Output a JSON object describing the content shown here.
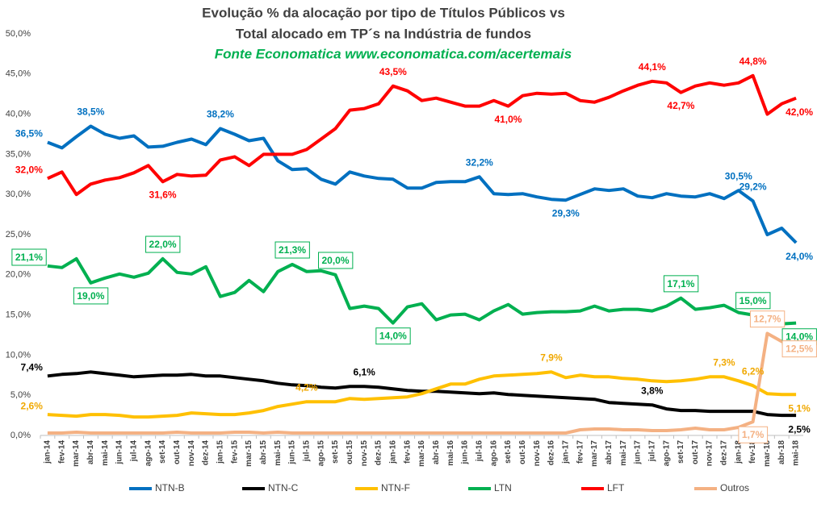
{
  "chart_data": {
    "type": "line",
    "title": [
      "Evolução % da alocação por tipo de Títulos Públicos vs",
      "Total alocado em TP´s na Indústria de fundos"
    ],
    "subtitle": "Fonte Economatica www.economatica.com/acertemais",
    "categories": [
      "jan-14",
      "fev-14",
      "mar-14",
      "abr-14",
      "mai-14",
      "jun-14",
      "jul-14",
      "ago-14",
      "set-14",
      "out-14",
      "nov-14",
      "dez-14",
      "jan-15",
      "fev-15",
      "mar-15",
      "abr-15",
      "mai-15",
      "jun-15",
      "jul-15",
      "ago-15",
      "set-15",
      "out-15",
      "nov-15",
      "dez-15",
      "jan-16",
      "fev-16",
      "mar-16",
      "abr-16",
      "mai-16",
      "jun-16",
      "jul-16",
      "ago-16",
      "set-16",
      "out-16",
      "nov-16",
      "dez-16",
      "jan-17",
      "fev-17",
      "mar-17",
      "abr-17",
      "mai-17",
      "jun-17",
      "jul-17",
      "ago-17",
      "set-17",
      "out-17",
      "nov-17",
      "dez-17",
      "jan-18",
      "fev-18",
      "mar-18",
      "abr-18",
      "mai-18"
    ],
    "ylim": [
      0,
      50
    ],
    "yticks": [
      {
        "value": 0,
        "label": "0,0%"
      },
      {
        "value": 5,
        "label": "5,0%"
      },
      {
        "value": 10,
        "label": "10,0%"
      },
      {
        "value": 15,
        "label": "15,0%"
      },
      {
        "value": 20,
        "label": "20,0%"
      },
      {
        "value": 25,
        "label": "25,0%"
      },
      {
        "value": 30,
        "label": "30,0%"
      },
      {
        "value": 35,
        "label": "35,0%"
      },
      {
        "value": 40,
        "label": "40,0%"
      },
      {
        "value": 45,
        "label": "45,0%"
      },
      {
        "value": 50,
        "label": "50,0%"
      }
    ],
    "grid": false,
    "legend": "bottom",
    "series": [
      {
        "name": "NTN-B",
        "color": "#0070c0",
        "boxed": false,
        "values": [
          36.5,
          35.8,
          37.2,
          38.5,
          37.5,
          37.0,
          37.3,
          35.9,
          36.0,
          36.5,
          36.9,
          36.2,
          38.2,
          37.5,
          36.7,
          37.0,
          34.2,
          33.1,
          33.2,
          31.9,
          31.3,
          32.8,
          32.3,
          32.0,
          31.9,
          30.8,
          30.8,
          31.5,
          31.6,
          31.6,
          32.2,
          30.1,
          30.0,
          30.1,
          29.7,
          29.4,
          29.3,
          30.0,
          30.7,
          30.5,
          30.7,
          29.8,
          29.6,
          30.1,
          29.8,
          29.7,
          30.1,
          29.5,
          30.5,
          29.2,
          25.0,
          25.8,
          24.0
        ],
        "value_labels": [
          "36,5%",
          null,
          null,
          "38,5%",
          null,
          null,
          null,
          null,
          null,
          null,
          null,
          null,
          "38,2%",
          null,
          null,
          null,
          null,
          null,
          null,
          null,
          null,
          null,
          null,
          null,
          null,
          null,
          null,
          null,
          null,
          null,
          "32,2%",
          null,
          null,
          null,
          null,
          null,
          "29,3%",
          null,
          null,
          null,
          null,
          null,
          null,
          null,
          null,
          null,
          null,
          null,
          "30,5%",
          "29,2%",
          null,
          null,
          "24,0%"
        ]
      },
      {
        "name": "NTN-C",
        "color": "#000000",
        "boxed": false,
        "values": [
          7.4,
          7.6,
          7.7,
          7.9,
          7.7,
          7.5,
          7.3,
          7.4,
          7.5,
          7.5,
          7.6,
          7.4,
          7.4,
          7.2,
          7.0,
          6.8,
          6.5,
          6.3,
          6.2,
          6.0,
          5.9,
          6.1,
          6.1,
          6.0,
          5.8,
          5.6,
          5.5,
          5.5,
          5.4,
          5.3,
          5.2,
          5.3,
          5.1,
          5.0,
          4.9,
          4.8,
          4.7,
          4.6,
          4.5,
          4.1,
          4.0,
          3.9,
          3.8,
          3.3,
          3.1,
          3.1,
          3.0,
          3.0,
          3.0,
          3.0,
          2.6,
          2.5,
          2.5
        ],
        "value_labels": [
          "7,4%",
          null,
          null,
          null,
          null,
          null,
          null,
          null,
          null,
          null,
          null,
          null,
          null,
          null,
          null,
          null,
          null,
          null,
          null,
          null,
          null,
          null,
          "6,1%",
          null,
          null,
          null,
          null,
          null,
          null,
          null,
          null,
          null,
          null,
          null,
          null,
          null,
          null,
          null,
          null,
          null,
          null,
          null,
          "3,8%",
          null,
          null,
          null,
          null,
          null,
          null,
          null,
          null,
          null,
          "2,5%"
        ]
      },
      {
        "name": "NTN-F",
        "color": "#ffc000",
        "boxed": false,
        "values": [
          2.6,
          2.5,
          2.4,
          2.6,
          2.6,
          2.5,
          2.3,
          2.3,
          2.4,
          2.5,
          2.8,
          2.7,
          2.6,
          2.6,
          2.8,
          3.1,
          3.6,
          3.9,
          4.2,
          4.2,
          4.2,
          4.6,
          4.5,
          4.6,
          4.7,
          4.8,
          5.2,
          5.8,
          6.4,
          6.4,
          7.0,
          7.4,
          7.5,
          7.6,
          7.7,
          7.9,
          7.2,
          7.5,
          7.3,
          7.3,
          7.1,
          7.0,
          6.8,
          6.7,
          6.8,
          7.0,
          7.3,
          7.3,
          6.8,
          6.2,
          5.2,
          5.1,
          5.1
        ],
        "value_labels": [
          "2,6%",
          null,
          null,
          null,
          null,
          null,
          null,
          null,
          null,
          null,
          null,
          null,
          null,
          null,
          null,
          null,
          null,
          null,
          "4,2%",
          null,
          null,
          null,
          null,
          null,
          null,
          null,
          null,
          null,
          null,
          null,
          null,
          null,
          null,
          null,
          null,
          "7,9%",
          null,
          null,
          null,
          null,
          null,
          null,
          null,
          null,
          null,
          null,
          null,
          "7,3%",
          null,
          "6,2%",
          null,
          null,
          "5,1%"
        ]
      },
      {
        "name": "LTN",
        "color": "#00b050",
        "boxed": true,
        "values": [
          21.1,
          20.9,
          22.0,
          19.0,
          19.6,
          20.1,
          19.7,
          20.2,
          22.0,
          20.3,
          20.1,
          21.0,
          17.3,
          17.8,
          19.3,
          17.9,
          20.4,
          21.3,
          20.4,
          20.5,
          20.0,
          15.8,
          16.1,
          15.8,
          14.0,
          16.0,
          16.4,
          14.4,
          15.0,
          15.1,
          14.4,
          15.5,
          16.3,
          15.1,
          15.3,
          15.4,
          15.4,
          15.5,
          16.1,
          15.5,
          15.7,
          15.7,
          15.5,
          16.1,
          17.1,
          15.7,
          15.9,
          16.2,
          15.3,
          15.0,
          14.6,
          13.9,
          14.0
        ],
        "value_labels": [
          "21,1%",
          null,
          null,
          "19,0%",
          null,
          null,
          null,
          null,
          "22,0%",
          null,
          null,
          null,
          null,
          null,
          null,
          null,
          null,
          "21,3%",
          null,
          null,
          "20,0%",
          null,
          null,
          null,
          "14,0%",
          null,
          null,
          null,
          null,
          null,
          null,
          null,
          null,
          null,
          null,
          null,
          null,
          null,
          null,
          null,
          null,
          null,
          null,
          null,
          "17,1%",
          null,
          null,
          null,
          null,
          "15,0%",
          null,
          null,
          "14,0%"
        ]
      },
      {
        "name": "LFT",
        "color": "#ff0000",
        "boxed": false,
        "values": [
          32.0,
          32.8,
          30.0,
          31.3,
          31.8,
          32.1,
          32.7,
          33.6,
          31.6,
          32.5,
          32.3,
          32.4,
          34.3,
          34.7,
          33.6,
          35.0,
          35.0,
          35.0,
          35.6,
          36.9,
          38.2,
          40.5,
          40.7,
          41.3,
          43.5,
          42.9,
          41.7,
          42.0,
          41.5,
          41.0,
          41.0,
          41.7,
          41.0,
          42.3,
          42.6,
          42.5,
          42.6,
          41.7,
          41.5,
          42.1,
          42.9,
          43.6,
          44.1,
          43.9,
          42.7,
          43.5,
          43.9,
          43.6,
          43.9,
          44.8,
          40.0,
          41.3,
          42.0
        ],
        "value_labels": [
          "32,0%",
          null,
          null,
          null,
          null,
          null,
          null,
          null,
          "31,6%",
          null,
          null,
          null,
          null,
          null,
          null,
          null,
          null,
          null,
          null,
          null,
          null,
          null,
          null,
          null,
          "43,5%",
          null,
          null,
          null,
          null,
          null,
          null,
          null,
          "41,0%",
          null,
          null,
          null,
          null,
          null,
          null,
          null,
          null,
          null,
          "44,1%",
          null,
          "42,7%",
          null,
          null,
          null,
          null,
          "44,8%",
          null,
          null,
          "42,0%"
        ]
      },
      {
        "name": "Outros",
        "color": "#f4b183",
        "boxed": true,
        "values": [
          0.3,
          0.3,
          0.4,
          0.3,
          0.3,
          0.3,
          0.3,
          0.3,
          0.3,
          0.4,
          0.3,
          0.3,
          0.3,
          0.4,
          0.4,
          0.3,
          0.4,
          0.3,
          0.3,
          0.3,
          0.3,
          0.3,
          0.3,
          0.3,
          0.3,
          0.3,
          0.3,
          0.3,
          0.3,
          0.3,
          0.3,
          0.3,
          0.3,
          0.3,
          0.3,
          0.3,
          0.3,
          0.7,
          0.8,
          0.8,
          0.7,
          0.7,
          0.6,
          0.6,
          0.7,
          0.9,
          0.7,
          0.7,
          1.0,
          1.7,
          12.7,
          11.7,
          12.5
        ],
        "value_labels": [
          null,
          null,
          null,
          null,
          null,
          null,
          null,
          null,
          null,
          null,
          null,
          null,
          null,
          null,
          null,
          null,
          null,
          null,
          null,
          null,
          null,
          null,
          null,
          null,
          null,
          null,
          null,
          null,
          null,
          null,
          null,
          null,
          null,
          null,
          null,
          null,
          null,
          null,
          null,
          null,
          null,
          null,
          null,
          null,
          null,
          null,
          null,
          null,
          null,
          "1,7%",
          "12,7%",
          null,
          "12,5%"
        ]
      }
    ]
  }
}
